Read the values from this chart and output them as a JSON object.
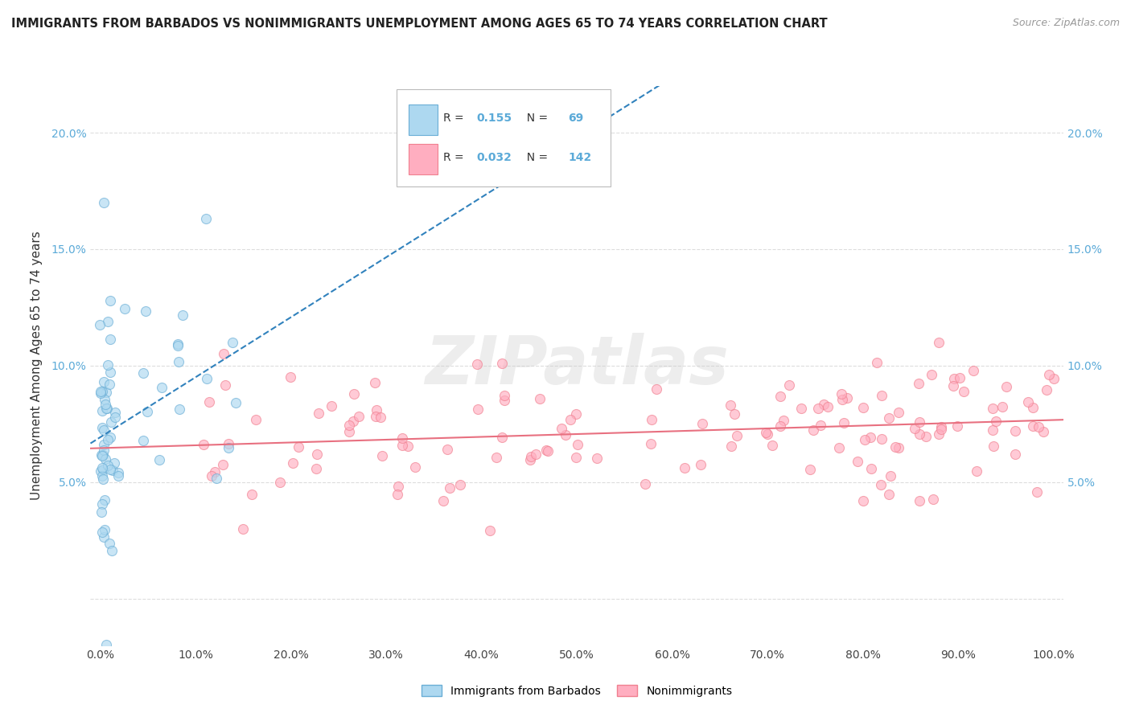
{
  "title": "IMMIGRANTS FROM BARBADOS VS NONIMMIGRANTS UNEMPLOYMENT AMONG AGES 65 TO 74 YEARS CORRELATION CHART",
  "source": "Source: ZipAtlas.com",
  "ylabel": "Unemployment Among Ages 65 to 74 years",
  "xlim": [
    -1,
    101
  ],
  "ylim": [
    -2,
    22
  ],
  "xticks": [
    0,
    10,
    20,
    30,
    40,
    50,
    60,
    70,
    80,
    90,
    100
  ],
  "xtick_labels": [
    "0.0%",
    "10.0%",
    "20.0%",
    "30.0%",
    "40.0%",
    "50.0%",
    "60.0%",
    "70.0%",
    "80.0%",
    "90.0%",
    "100.0%"
  ],
  "yticks": [
    0,
    5,
    10,
    15,
    20
  ],
  "ytick_labels": [
    "",
    "5.0%",
    "10.0%",
    "15.0%",
    "20.0%"
  ],
  "blue_R": 0.155,
  "blue_N": 69,
  "pink_R": 0.032,
  "pink_N": 142,
  "blue_face_color": "#ADD8F0",
  "blue_edge_color": "#6AAED6",
  "blue_line_color": "#3182BD",
  "pink_face_color": "#FFAEC0",
  "pink_edge_color": "#F08090",
  "pink_line_color": "#E87080",
  "legend_label_blue": "Immigrants from Barbados",
  "legend_label_pink": "Nonimmigrants",
  "watermark": "ZIPatlas",
  "tick_color": "#5BAAD8",
  "grid_color": "#DDDDDD"
}
